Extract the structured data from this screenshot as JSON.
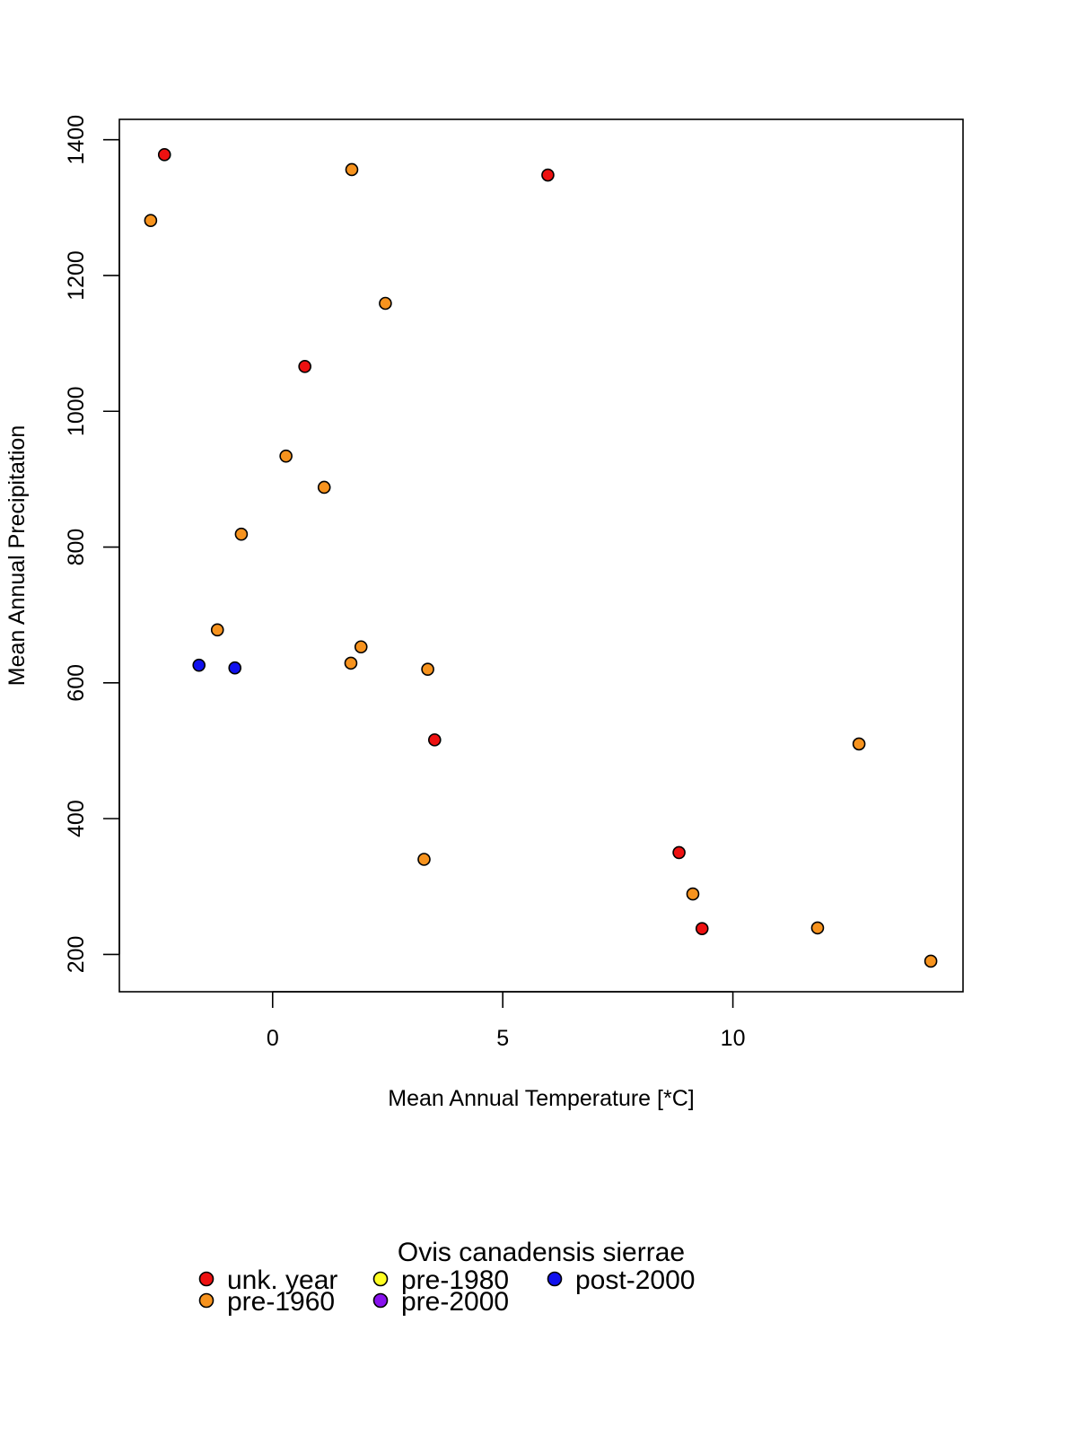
{
  "chart_data": {
    "type": "scatter",
    "title": "",
    "xlabel": "Mean Annual Temperature [*C]",
    "ylabel": "Mean Annual Precipitation",
    "xlim": [
      -3.33,
      15.0
    ],
    "ylim": [
      145,
      1430
    ],
    "x_ticks": [
      0,
      5,
      10
    ],
    "y_ticks": [
      200,
      400,
      600,
      800,
      1000,
      1200,
      1400
    ],
    "grid": false,
    "legend": {
      "title": "Ovis canadensis sierrae",
      "placement": "bottom",
      "entries": [
        {
          "label": "unk. year",
          "color": "#ee1111"
        },
        {
          "label": "pre-1960",
          "color": "#f7931e"
        },
        {
          "label": "pre-1980",
          "color": "#ffff22"
        },
        {
          "label": "pre-2000",
          "color": "#8811ee"
        },
        {
          "label": "post-2000",
          "color": "#1111ee"
        }
      ]
    },
    "series": [
      {
        "name": "unk. year",
        "color": "#ee1111",
        "points": [
          {
            "x": -2.35,
            "y": 1378
          },
          {
            "x": 5.98,
            "y": 1348
          },
          {
            "x": 0.7,
            "y": 1066
          },
          {
            "x": 3.52,
            "y": 516
          },
          {
            "x": 8.83,
            "y": 350
          },
          {
            "x": 9.33,
            "y": 238
          }
        ]
      },
      {
        "name": "pre-1960",
        "color": "#f7931e",
        "points": [
          {
            "x": -2.65,
            "y": 1281
          },
          {
            "x": 1.72,
            "y": 1356
          },
          {
            "x": 2.45,
            "y": 1159
          },
          {
            "x": 0.29,
            "y": 934
          },
          {
            "x": 1.12,
            "y": 888
          },
          {
            "x": -0.68,
            "y": 819
          },
          {
            "x": -1.2,
            "y": 678
          },
          {
            "x": 1.92,
            "y": 653
          },
          {
            "x": 1.7,
            "y": 629
          },
          {
            "x": 3.37,
            "y": 620
          },
          {
            "x": 3.29,
            "y": 340
          },
          {
            "x": 12.74,
            "y": 510
          },
          {
            "x": 9.13,
            "y": 289
          },
          {
            "x": 11.84,
            "y": 239
          },
          {
            "x": 14.3,
            "y": 190
          }
        ]
      },
      {
        "name": "pre-1980",
        "color": "#ffff22",
        "points": []
      },
      {
        "name": "pre-2000",
        "color": "#8811ee",
        "points": []
      },
      {
        "name": "post-2000",
        "color": "#1111ee",
        "points": [
          {
            "x": -1.6,
            "y": 626
          },
          {
            "x": -0.82,
            "y": 622
          }
        ]
      }
    ]
  }
}
